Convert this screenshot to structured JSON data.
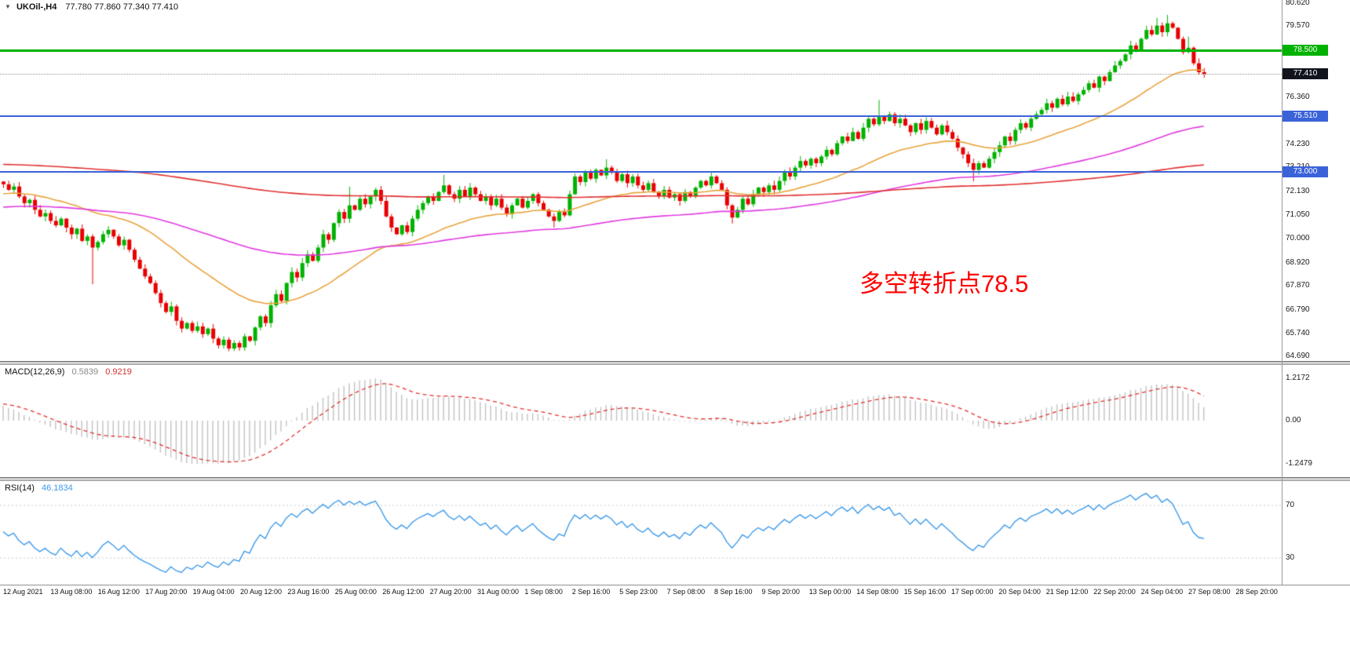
{
  "header": {
    "dropdown_icon": "▼",
    "title": "UKOil-,H4",
    "ohlc": "77.780 77.860 77.340 77.410"
  },
  "annotation": {
    "text": "多空转折点78.5",
    "color": "#ff0000"
  },
  "chart_data": {
    "type": "candlestick",
    "symbol": "UKOil-",
    "timeframe": "H4",
    "current_bar": {
      "open": 77.78,
      "high": 77.86,
      "low": 77.34,
      "close": 77.41
    },
    "view": {
      "price_top": 80.75,
      "price_bottom": 64.49
    },
    "candle_colors": {
      "up": "#00b200",
      "down": "#e80000"
    },
    "closes": [
      72.45,
      72.2,
      72.35,
      71.9,
      71.6,
      71.75,
      71.3,
      71.0,
      71.15,
      70.8,
      70.6,
      70.9,
      70.5,
      70.2,
      70.45,
      69.9,
      70.1,
      69.6,
      69.85,
      70.2,
      70.4,
      70.1,
      69.7,
      69.95,
      69.5,
      69.05,
      68.65,
      68.3,
      68.0,
      67.55,
      67.1,
      66.7,
      66.95,
      66.3,
      65.95,
      66.2,
      65.85,
      66.05,
      65.7,
      65.95,
      65.5,
      65.2,
      65.45,
      65.05,
      65.3,
      65.1,
      65.6,
      65.4,
      66.0,
      66.5,
      66.2,
      67.0,
      67.5,
      67.2,
      68.0,
      68.5,
      68.25,
      68.9,
      69.3,
      69.0,
      69.6,
      70.2,
      69.95,
      70.7,
      71.2,
      70.9,
      71.5,
      71.3,
      71.8,
      71.55,
      71.9,
      72.2,
      71.7,
      71.0,
      70.5,
      70.2,
      70.6,
      70.3,
      70.9,
      71.3,
      71.6,
      71.9,
      71.7,
      72.1,
      72.4,
      72.0,
      71.8,
      72.2,
      71.9,
      72.3,
      72.0,
      71.7,
      71.9,
      71.5,
      71.8,
      71.4,
      71.1,
      71.5,
      71.8,
      71.4,
      71.7,
      72.0,
      71.6,
      71.3,
      71.0,
      70.8,
      71.2,
      71.05,
      72.0,
      72.8,
      72.55,
      73.0,
      72.7,
      73.1,
      72.85,
      73.2,
      73.0,
      72.6,
      72.9,
      72.5,
      72.8,
      72.4,
      72.2,
      72.5,
      72.1,
      71.9,
      72.2,
      71.85,
      72.0,
      71.7,
      72.1,
      71.9,
      72.3,
      72.6,
      72.4,
      72.8,
      72.5,
      72.2,
      71.5,
      70.95,
      71.3,
      71.8,
      71.55,
      72.0,
      72.3,
      72.1,
      72.4,
      72.2,
      72.6,
      73.0,
      72.8,
      73.2,
      73.5,
      73.3,
      73.6,
      73.4,
      73.7,
      74.0,
      73.8,
      74.3,
      74.6,
      74.4,
      74.8,
      74.5,
      75.0,
      75.4,
      75.15,
      75.5,
      75.3,
      75.6,
      75.2,
      75.4,
      75.1,
      74.8,
      75.2,
      74.9,
      75.3,
      75.0,
      74.7,
      75.1,
      74.8,
      74.5,
      74.1,
      73.8,
      73.4,
      73.1,
      73.4,
      73.2,
      73.6,
      73.9,
      74.2,
      74.6,
      74.4,
      74.9,
      75.2,
      75.0,
      75.4,
      75.6,
      75.8,
      76.1,
      75.9,
      76.3,
      76.05,
      76.4,
      76.2,
      76.5,
      76.7,
      77.0,
      76.8,
      77.3,
      77.1,
      77.5,
      77.8,
      78.0,
      78.3,
      78.7,
      78.5,
      79.0,
      79.4,
      79.2,
      79.6,
      79.3,
      79.7,
      79.5,
      79.0,
      78.4,
      78.6,
      77.9,
      77.5,
      77.41
    ],
    "wick_overrides": {
      "17": {
        "low": 67.95
      },
      "43": {
        "low": 64.93
      },
      "45": {
        "low": 64.95
      },
      "66": {
        "high": 72.35
      },
      "84": {
        "high": 72.88
      },
      "105": {
        "low": 70.5
      },
      "115": {
        "high": 73.58
      },
      "139": {
        "low": 70.68
      },
      "167": {
        "high": 76.25
      },
      "185": {
        "low": 72.58
      },
      "220": {
        "high": 79.95
      },
      "222": {
        "high": 80.08
      },
      "226": {
        "high": 79.1
      },
      "229": {
        "low": 77.25
      }
    },
    "moving_averages": [
      {
        "name": "ma-fast",
        "period": 34,
        "color": "#e8a33c",
        "seed": 72.0
      },
      {
        "name": "ma-medium",
        "period": 120,
        "color": "#e03ae0",
        "seed": 71.4
      },
      {
        "name": "ma-slow",
        "period": 380,
        "color": "#e03030",
        "seed": 73.35
      }
    ],
    "levels": [
      {
        "price": 78.5,
        "label": "78.500",
        "color": "#00b200",
        "thickness": 3
      },
      {
        "price": 75.51,
        "label": "75.510",
        "color": "#3a62d9",
        "thickness": 2
      },
      {
        "price": 73.0,
        "label": "73.000",
        "color": "#3a62d9",
        "thickness": 2
      }
    ],
    "current_price": {
      "value": 77.41,
      "label": "77.410",
      "badge_bg": "#10131c"
    },
    "price_axis_labels": [
      {
        "value": 80.62,
        "text": "80.620"
      },
      {
        "value": 79.57,
        "text": "79.570"
      },
      {
        "value": 76.36,
        "text": "76.360"
      },
      {
        "value": 74.23,
        "text": "74.230"
      },
      {
        "value": 73.21,
        "text": "73.210"
      },
      {
        "value": 72.13,
        "text": "72.130"
      },
      {
        "value": 71.05,
        "text": "71.050"
      },
      {
        "value": 70.0,
        "text": "70.000"
      },
      {
        "value": 68.92,
        "text": "68.920"
      },
      {
        "value": 67.87,
        "text": "67.870"
      },
      {
        "value": 66.79,
        "text": "66.790"
      },
      {
        "value": 65.74,
        "text": "65.740"
      },
      {
        "value": 64.69,
        "text": "64.690"
      }
    ],
    "macd": {
      "title": "MACD(12,26,9)",
      "value_main": "0.5839",
      "value_signal": "0.9219",
      "fast": 12,
      "slow": 26,
      "signal": 9,
      "histogram_color": "#c2c2c2",
      "signal_color": "#e03030",
      "seed_fast_offset": 0.18,
      "seed_slow_offset": -0.3,
      "seed_signal": 0.5,
      "axis_labels": [
        {
          "value": 1.2172,
          "text": "1.2172"
        },
        {
          "value": 0,
          "text": "0.00"
        },
        {
          "value": -1.2479,
          "text": "-1.2479"
        }
      ]
    },
    "rsi": {
      "title": "RSI(14)",
      "value": "46.1834",
      "period": 14,
      "color": "#3d9ae8",
      "levels": [
        {
          "value": 70,
          "text": "70"
        },
        {
          "value": 30,
          "text": "30"
        }
      ]
    },
    "time_labels": [
      "12 Aug 2021",
      "13 Aug 08:00",
      "16 Aug 12:00",
      "17 Aug 20:00",
      "19 Aug 04:00",
      "20 Aug 12:00",
      "23 Aug 16:00",
      "25 Aug 00:00",
      "26 Aug 12:00",
      "27 Aug 20:00",
      "31 Aug 00:00",
      "1 Sep 08:00",
      "2 Sep 16:00",
      "5 Sep 23:00",
      "7 Sep 08:00",
      "8 Sep 16:00",
      "9 Sep 20:00",
      "13 Sep 00:00",
      "14 Sep 08:00",
      "15 Sep 16:00",
      "17 Sep 00:00",
      "20 Sep 04:00",
      "21 Sep 12:00",
      "22 Sep 20:00",
      "24 Sep 04:00",
      "27 Sep 08:00",
      "28 Sep 20:00"
    ]
  }
}
